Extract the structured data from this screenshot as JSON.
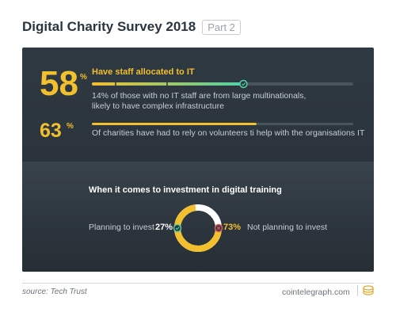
{
  "header": {
    "title": "Digital Charity Survey 2018",
    "part": "Part 2"
  },
  "chart_data": [
    {
      "type": "bar",
      "title": "Have staff allocated to IT",
      "categories": [
        "Have staff allocated to IT"
      ],
      "values": [
        58
      ],
      "display": "58",
      "unit": "%",
      "ylim": [
        0,
        100
      ],
      "note_lines": [
        "14% of those with no IT staff are from large multinationals,",
        "likely to have complex infrastructure"
      ]
    },
    {
      "type": "bar",
      "categories": [
        "Of charities have had to rely on volunteers ti help with the organisations IT"
      ],
      "values": [
        63
      ],
      "display": "63",
      "unit": "%",
      "ylim": [
        0,
        100
      ],
      "note": "Of charities have had to rely on volunteers ti help with the organisations IT"
    },
    {
      "type": "pie",
      "title": "When it comes to investment in digital training",
      "categories": [
        "Planning to invest",
        "Not planning to invest"
      ],
      "values": [
        27,
        73
      ],
      "labels": [
        "27%",
        "73%"
      ]
    }
  ],
  "colors": {
    "accent": "#f2bf2e",
    "green": "#4fd1a5",
    "red": "#e4555c",
    "panel": "#2d363e",
    "track": "#4a545d"
  },
  "footer": {
    "source": "source: Tech Trust",
    "brand": "cointelegraph.com"
  }
}
